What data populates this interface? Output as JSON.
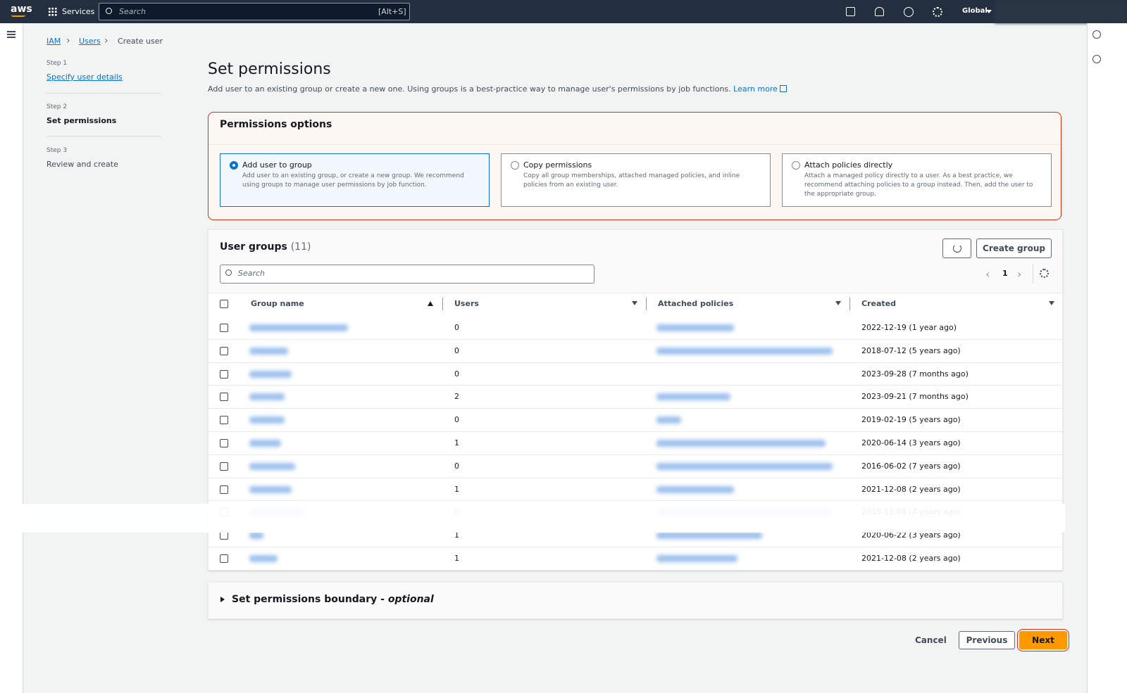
{
  "topbar": {
    "logo": "aws",
    "services": "Services",
    "search": "Search",
    "shortcut": "[Alt+S]",
    "region": "Global"
  },
  "breadcrumb": [
    "IAM",
    "Users",
    "Create user"
  ],
  "steps": [
    {
      "label": "Step 1",
      "name": "Specify user details"
    },
    {
      "label": "Step 2",
      "name": "Set permissions"
    },
    {
      "label": "Step 3",
      "name": "Review and create"
    }
  ],
  "page": {
    "title": "Set permissions",
    "description": "Add user to an existing group or create a new one. Using groups is a best-practice way to manage user's permissions by job functions.",
    "learn_more": "Learn more"
  },
  "permissions_options": {
    "title": "Permissions options",
    "options": [
      {
        "title": "Add user to group",
        "description": "Add user to an existing group, or create a new group. We recommend using groups to manage user permissions by job function."
      },
      {
        "title": "Copy permissions",
        "description": "Copy all group memberships, attached managed policies, and inline policies from an existing user."
      },
      {
        "title": "Attach policies directly",
        "description": "Attach a managed policy directly to a user. As a best practice, we recommend attaching policies to a group instead. Then, add the user to the appropriate group."
      }
    ]
  },
  "user_groups": {
    "title": "User groups",
    "count": "(11)",
    "create": "Create group",
    "search": "Search",
    "page": 1,
    "columns": [
      "Group name",
      "Users",
      "Attached policies",
      "Created"
    ],
    "rows": [
      {
        "users": 0,
        "created": "2022-12-19 (1 year ago)"
      },
      {
        "users": 0,
        "created": "2018-07-12 (5 years ago)"
      },
      {
        "users": 0,
        "created": "2023-09-28 (7 months ago)"
      },
      {
        "users": 2,
        "created": "2023-09-21 (7 months ago)"
      },
      {
        "users": 0,
        "created": "2019-02-19 (5 years ago)"
      },
      {
        "users": 1,
        "created": "2020-06-14 (3 years ago)"
      },
      {
        "users": 0,
        "created": "2016-06-02 (7 years ago)"
      },
      {
        "users": 1,
        "created": "2021-12-08 (2 years ago)"
      },
      {
        "users": 0,
        "created": "2019-11-08 (4 years ago)"
      },
      {
        "users": 1,
        "created": "2020-06-22 (3 years ago)"
      },
      {
        "users": 1,
        "created": "2021-12-08 (2 years ago)"
      }
    ]
  },
  "boundary": {
    "title": "Set permissions boundary -",
    "optional": "optional"
  },
  "actions": {
    "cancel": "Cancel",
    "previous": "Previous",
    "next": "Next"
  }
}
